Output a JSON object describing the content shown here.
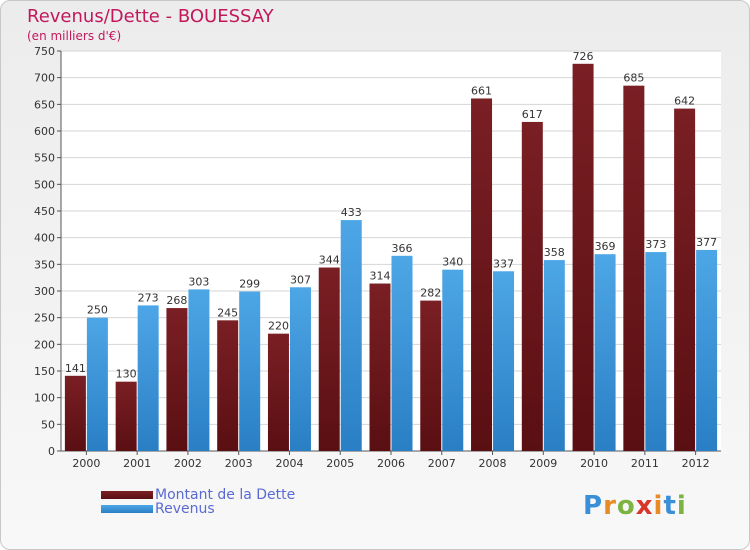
{
  "title": "Revenus/Dette - BOUESSAY",
  "subtitle": "(en milliers d'€)",
  "brand": {
    "logo_letters": [
      "P",
      "r",
      "o",
      "x",
      "i",
      "t",
      "i"
    ],
    "logo_colors": [
      "#3a8fd6",
      "#e98b24",
      "#7cb342",
      "#d9362b",
      "#e98b24",
      "#3a8fd6",
      "#7cb342"
    ]
  },
  "colors": {
    "debt": "#7a1f24",
    "debt_dark": "#5a0f12",
    "revenue": "#4da6e6",
    "revenue_dark": "#2a7fc4",
    "title": "#c2185b",
    "legend_text": "#5a6ad2"
  },
  "chart_data": {
    "type": "bar",
    "categories": [
      "2000",
      "2001",
      "2002",
      "2003",
      "2004",
      "2005",
      "2006",
      "2007",
      "2008",
      "2009",
      "2010",
      "2011",
      "2012"
    ],
    "series": [
      {
        "name": "Montant de la Dette",
        "values": [
          141,
          130,
          268,
          245,
          220,
          344,
          314,
          282,
          661,
          617,
          726,
          685,
          642
        ]
      },
      {
        "name": "Revenus",
        "values": [
          250,
          273,
          303,
          299,
          307,
          433,
          366,
          340,
          337,
          358,
          369,
          373,
          377
        ]
      }
    ],
    "ylim": [
      0,
      750
    ],
    "yticks": [
      0,
      50,
      100,
      150,
      200,
      250,
      300,
      350,
      400,
      450,
      500,
      550,
      600,
      650,
      700,
      750
    ],
    "grid": true,
    "legend_position": "bottom-left"
  }
}
